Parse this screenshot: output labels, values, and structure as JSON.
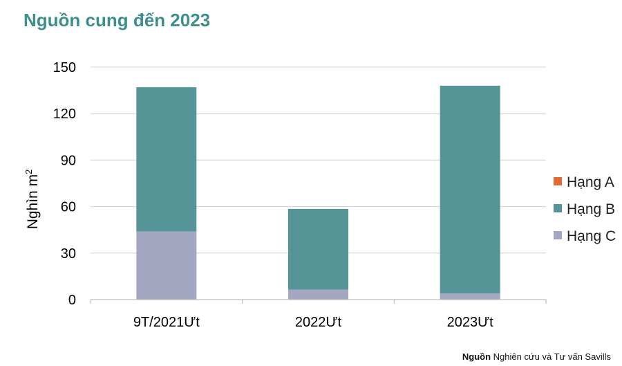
{
  "page": {
    "title": "Nguồn cung đến 2023",
    "source_label": "Nguồn",
    "source_text": "Nghiên cứu và Tư vấn Savills"
  },
  "chart_data": {
    "type": "bar",
    "stacked": true,
    "title": "Nguồn cung đến 2023",
    "categories": [
      "9T/2021Ưt",
      "2022Ưt",
      "2023Ưt"
    ],
    "series": [
      {
        "name": "Hạng A",
        "color": "#e06b33",
        "values": [
          0,
          0,
          0
        ]
      },
      {
        "name": "Hạng B",
        "color": "#559598",
        "values": [
          93,
          52,
          134
        ]
      },
      {
        "name": "Hạng C",
        "color": "#a3a7c2",
        "values": [
          44,
          6.5,
          4
        ]
      }
    ],
    "ylabel_main": "Nghìn m",
    "ylabel_sup": "2",
    "xlabel": "",
    "ylim": [
      0,
      150
    ],
    "yticks": [
      0,
      30,
      60,
      90,
      120,
      150
    ],
    "grid": true,
    "legend": "right"
  }
}
